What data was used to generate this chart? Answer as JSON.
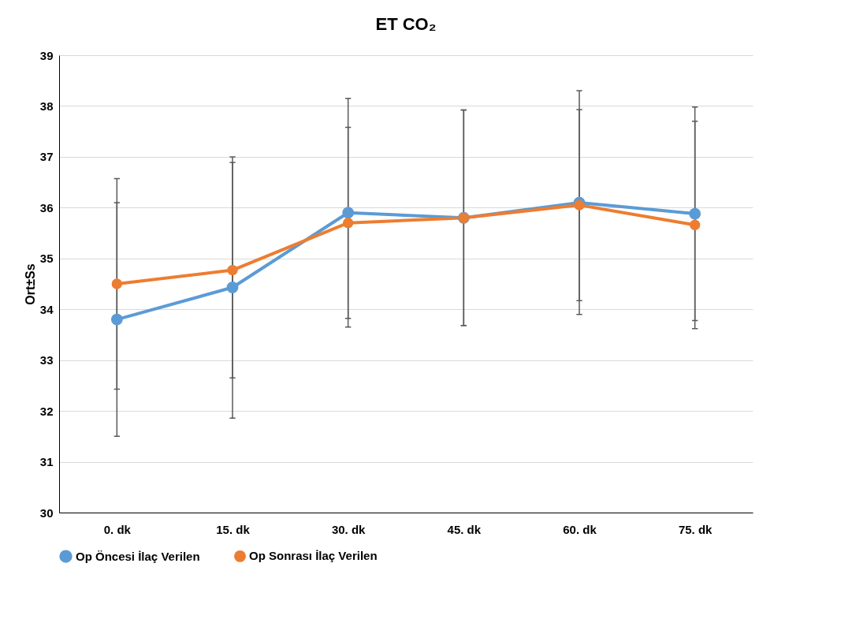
{
  "chart_data": {
    "type": "line",
    "title": "ET CO₂",
    "ylabel": "Ort±Ss",
    "categories": [
      "0. dk",
      "15. dk",
      "30. dk",
      "45. dk",
      "60. dk",
      "75. dk"
    ],
    "series": [
      {
        "name": "Op Öncesi İlaç Verilen",
        "color": "#5b9bd5",
        "values": [
          33.8,
          34.43,
          35.9,
          35.8,
          36.1,
          35.88
        ],
        "errors": [
          2.3,
          2.57,
          2.25,
          2.12,
          2.2,
          2.1
        ]
      },
      {
        "name": "Op Sonrası İlaç Verilen",
        "color": "#ed7d31",
        "values": [
          34.5,
          34.77,
          35.7,
          35.8,
          36.05,
          35.66
        ],
        "errors": [
          2.07,
          2.12,
          1.88,
          2.12,
          1.88,
          2.04
        ]
      }
    ],
    "ylim": [
      30,
      39
    ],
    "yticks": [
      30,
      31,
      32,
      33,
      34,
      35,
      36,
      37,
      38,
      39
    ],
    "grid": "y",
    "legend": "bottom",
    "marker": "circle",
    "line_style": "solid"
  }
}
